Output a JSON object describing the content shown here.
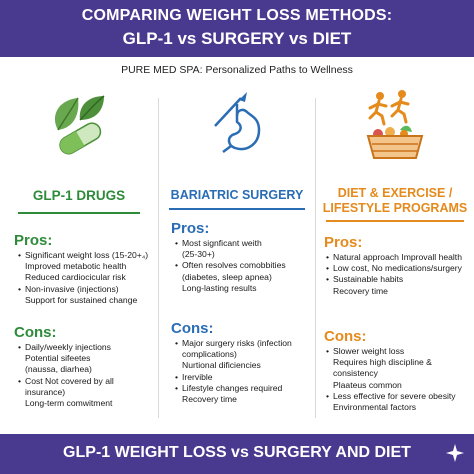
{
  "header": {
    "title_line1": "COMPARING WEIGHT LOSS METHODS:",
    "title_line2": "GLP-1 vs SURGERY vs DIET"
  },
  "subtitle": "PURE MED SPA: Personalized Paths to Wellness",
  "columns": [
    {
      "title": "GLP-1 DRUGS",
      "accent": "#2e8b3a",
      "icon": "leaf-capsule-icon",
      "pros_label": "Pros:",
      "pros": [
        [
          "Significant weight loss (15-20+₄)",
          "Improved metabotic health",
          "Reduced cardiocicular risk"
        ],
        [
          "Non-invasive (injections)",
          "Support for sustained change"
        ]
      ],
      "cons_label": "Cons:",
      "cons": [
        [
          "Daily/weekly injections",
          "Potential sifeetes",
          "(naussa, diarhea)"
        ],
        [
          "Cost Not covered by all insurance)",
          "Long-term comwitment"
        ]
      ]
    },
    {
      "title": "BARIATRIC SURGERY",
      "accent": "#2a6db5",
      "icon": "stomach-scalpel-icon",
      "pros_label": "Pros:",
      "pros": [
        [
          "Most signficant weith",
          "(25-30+)"
        ],
        [
          "Often resolves comobbities",
          "(diabetes, sleep apnea)",
          "Long-lasting results"
        ]
      ],
      "cons_label": "Cons:",
      "cons": [
        [
          "Major surgery risks (infection",
          "complications)",
          "Nurtional dificiencies"
        ],
        [
          "Irervible"
        ],
        [
          "Lifestyle changes required",
          "Recovery time"
        ]
      ]
    },
    {
      "title_line1": "DIET & EXERCISE /",
      "title_line2": "LIFESTYLE PROGRAMS",
      "accent": "#e58a1c",
      "icon": "runners-basket-icon",
      "pros_label": "Pros:",
      "pros": [
        [
          "Natural approach Improvall health"
        ],
        [
          "Low cost, No medications/surgery"
        ],
        [
          "Sustainable habits",
          "Recovery time"
        ]
      ],
      "cons_label": "Cons:",
      "cons": [
        [
          "Slower weight loss",
          "Requires high discipline & consistency",
          "Plaateus common"
        ],
        [
          "Less effective for severe obesity",
          "Environmental factors"
        ]
      ]
    }
  ],
  "footer": {
    "title": "GLP-1 WEIGHT LOSS vs SURGERY AND DIET"
  },
  "colors": {
    "banner": "#4a3a8f",
    "glp1": "#2e8b3a",
    "surgery": "#2a6db5",
    "diet": "#e58a1c"
  }
}
